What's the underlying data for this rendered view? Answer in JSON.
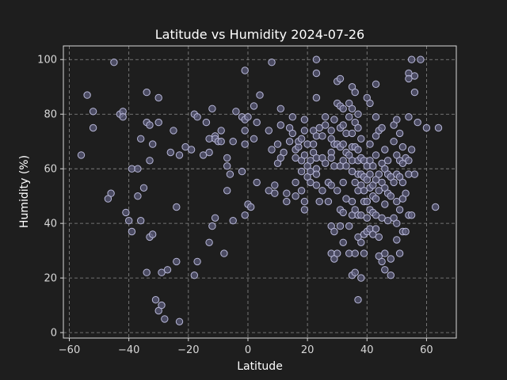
{
  "chart_data": {
    "type": "scatter",
    "title": "Latitude vs Humidity 2024-07-26",
    "xlabel": "Latitude",
    "ylabel": "Humidity (%)",
    "xlim": [
      -62,
      70
    ],
    "ylim": [
      -2,
      105
    ],
    "xticks": [
      -60,
      -40,
      -20,
      0,
      20,
      40,
      60
    ],
    "yticks": [
      0,
      20,
      40,
      60,
      80,
      100
    ],
    "grid": true,
    "colors": {
      "background": "#1e1e1e",
      "point_fill": "#5a5a78",
      "point_edge": "#b8b8d8",
      "grid": "#8a8a8a",
      "text": "#ffffff"
    },
    "points": [
      [
        -45,
        99
      ],
      [
        -54,
        87
      ],
      [
        -52,
        81
      ],
      [
        -52,
        75
      ],
      [
        -56,
        65
      ],
      [
        -43,
        80
      ],
      [
        -42,
        81
      ],
      [
        -42,
        79
      ],
      [
        -41,
        44
      ],
      [
        -40,
        41
      ],
      [
        -39,
        60
      ],
      [
        -39,
        37
      ],
      [
        -37,
        60
      ],
      [
        -46,
        51
      ],
      [
        -47,
        49
      ],
      [
        -35,
        53
      ],
      [
        -36,
        41
      ],
      [
        -37,
        50
      ],
      [
        -36,
        71
      ],
      [
        -34,
        77
      ],
      [
        -33,
        76
      ],
      [
        -33,
        63
      ],
      [
        -32,
        69
      ],
      [
        -34,
        88
      ],
      [
        -30,
        86
      ],
      [
        -34,
        22
      ],
      [
        -33,
        35
      ],
      [
        -32,
        36
      ],
      [
        -31,
        12
      ],
      [
        -30,
        8
      ],
      [
        -29,
        10
      ],
      [
        -29,
        22
      ],
      [
        -27,
        23
      ],
      [
        -28,
        5
      ],
      [
        -30,
        77
      ],
      [
        -26,
        66
      ],
      [
        -25,
        74
      ],
      [
        -24,
        46
      ],
      [
        -24,
        26
      ],
      [
        -23,
        4
      ],
      [
        -23,
        65
      ],
      [
        -21,
        68
      ],
      [
        -19,
        67
      ],
      [
        -18,
        80
      ],
      [
        -17,
        79
      ],
      [
        -17,
        26
      ],
      [
        -18,
        21
      ],
      [
        -15,
        65
      ],
      [
        -14,
        77
      ],
      [
        -13,
        71
      ],
      [
        -13,
        66
      ],
      [
        -13,
        33
      ],
      [
        -12,
        82
      ],
      [
        -12,
        39
      ],
      [
        -11,
        72
      ],
      [
        -11,
        71
      ],
      [
        -10,
        70
      ],
      [
        -11,
        42
      ],
      [
        -9,
        74
      ],
      [
        -9,
        70
      ],
      [
        -8,
        29
      ],
      [
        -7,
        52
      ],
      [
        -7,
        64
      ],
      [
        -7,
        61
      ],
      [
        -6,
        58
      ],
      [
        -5,
        41
      ],
      [
        -5,
        70
      ],
      [
        -4,
        81
      ],
      [
        -2,
        79
      ],
      [
        -2,
        59
      ],
      [
        -1,
        78
      ],
      [
        -1,
        74
      ],
      [
        -1,
        69
      ],
      [
        -1,
        96
      ],
      [
        0,
        79
      ],
      [
        0,
        47
      ],
      [
        -1,
        43
      ],
      [
        1,
        46
      ],
      [
        2,
        83
      ],
      [
        2,
        71
      ],
      [
        3,
        77
      ],
      [
        3,
        55
      ],
      [
        4,
        87
      ],
      [
        7,
        74
      ],
      [
        7,
        52
      ],
      [
        8,
        67
      ],
      [
        8,
        99
      ],
      [
        9,
        54
      ],
      [
        9,
        51
      ],
      [
        10,
        62
      ],
      [
        10,
        69
      ],
      [
        11,
        64
      ],
      [
        11,
        82
      ],
      [
        11,
        76
      ],
      [
        12,
        66
      ],
      [
        13,
        48
      ],
      [
        13,
        51
      ],
      [
        14,
        70
      ],
      [
        14,
        75
      ],
      [
        15,
        79
      ],
      [
        15,
        73
      ],
      [
        16,
        67
      ],
      [
        16,
        64
      ],
      [
        16,
        50
      ],
      [
        16,
        55
      ],
      [
        17,
        68
      ],
      [
        17,
        70
      ],
      [
        18,
        63
      ],
      [
        18,
        59
      ],
      [
        18,
        71
      ],
      [
        18,
        52
      ],
      [
        19,
        78
      ],
      [
        19,
        74
      ],
      [
        19,
        65
      ],
      [
        19,
        48
      ],
      [
        19,
        45
      ],
      [
        20,
        69
      ],
      [
        20,
        61
      ],
      [
        20,
        57
      ],
      [
        21,
        63
      ],
      [
        21,
        59
      ],
      [
        21,
        55
      ],
      [
        22,
        66
      ],
      [
        22,
        69
      ],
      [
        22,
        74
      ],
      [
        23,
        72
      ],
      [
        23,
        64
      ],
      [
        23,
        60
      ],
      [
        23,
        58
      ],
      [
        23,
        54
      ],
      [
        23,
        86
      ],
      [
        23,
        95
      ],
      [
        23,
        100
      ],
      [
        24,
        75
      ],
      [
        24,
        48
      ],
      [
        25,
        72
      ],
      [
        25,
        64
      ],
      [
        25,
        52
      ],
      [
        26,
        79
      ],
      [
        26,
        76
      ],
      [
        26,
        62
      ],
      [
        27,
        55
      ],
      [
        27,
        48
      ],
      [
        28,
        74
      ],
      [
        28,
        71
      ],
      [
        28,
        66
      ],
      [
        28,
        64
      ],
      [
        28,
        54
      ],
      [
        28,
        39
      ],
      [
        28,
        29
      ],
      [
        29,
        78
      ],
      [
        29,
        69
      ],
      [
        29,
        61
      ],
      [
        29,
        37
      ],
      [
        29,
        27
      ],
      [
        30,
        92
      ],
      [
        30,
        84
      ],
      [
        30,
        69
      ],
      [
        30,
        52
      ],
      [
        30,
        29
      ],
      [
        31,
        93
      ],
      [
        31,
        83
      ],
      [
        31,
        75
      ],
      [
        31,
        68
      ],
      [
        31,
        61
      ],
      [
        31,
        45
      ],
      [
        31,
        39
      ],
      [
        32,
        82
      ],
      [
        32,
        76
      ],
      [
        32,
        69
      ],
      [
        32,
        63
      ],
      [
        32,
        55
      ],
      [
        32,
        44
      ],
      [
        32,
        33
      ],
      [
        33,
        73
      ],
      [
        33,
        66
      ],
      [
        33,
        61
      ],
      [
        33,
        49
      ],
      [
        34,
        84
      ],
      [
        34,
        79
      ],
      [
        34,
        65
      ],
      [
        34,
        39
      ],
      [
        34,
        29
      ],
      [
        35,
        90
      ],
      [
        35,
        82
      ],
      [
        35,
        73
      ],
      [
        35,
        68
      ],
      [
        35,
        63
      ],
      [
        35,
        59
      ],
      [
        35,
        48
      ],
      [
        35,
        43
      ],
      [
        35,
        21
      ],
      [
        36,
        88
      ],
      [
        36,
        77
      ],
      [
        36,
        68
      ],
      [
        36,
        55
      ],
      [
        36,
        45
      ],
      [
        36,
        29
      ],
      [
        36,
        22
      ],
      [
        37,
        80
      ],
      [
        37,
        75
      ],
      [
        37,
        67
      ],
      [
        37,
        63
      ],
      [
        37,
        58
      ],
      [
        37,
        52
      ],
      [
        37,
        43
      ],
      [
        37,
        35
      ],
      [
        37,
        12
      ],
      [
        38,
        71
      ],
      [
        38,
        64
      ],
      [
        38,
        58
      ],
      [
        38,
        54
      ],
      [
        38,
        43
      ],
      [
        38,
        33
      ],
      [
        38,
        20
      ],
      [
        39,
        63
      ],
      [
        39,
        57
      ],
      [
        39,
        52
      ],
      [
        39,
        48
      ],
      [
        39,
        36
      ],
      [
        39,
        29
      ],
      [
        40,
        86
      ],
      [
        40,
        61
      ],
      [
        40,
        56
      ],
      [
        40,
        48
      ],
      [
        40,
        42
      ],
      [
        40,
        37
      ],
      [
        41,
        84
      ],
      [
        41,
        69
      ],
      [
        41,
        63
      ],
      [
        41,
        58
      ],
      [
        41,
        53
      ],
      [
        41,
        45
      ],
      [
        41,
        38
      ],
      [
        42,
        61
      ],
      [
        42,
        54
      ],
      [
        42,
        50
      ],
      [
        42,
        44
      ],
      [
        42,
        36
      ],
      [
        43,
        91
      ],
      [
        43,
        79
      ],
      [
        43,
        72
      ],
      [
        43,
        65
      ],
      [
        43,
        56
      ],
      [
        43,
        49
      ],
      [
        43,
        43
      ],
      [
        43,
        38
      ],
      [
        44,
        74
      ],
      [
        44,
        58
      ],
      [
        44,
        52
      ],
      [
        44,
        35
      ],
      [
        44,
        28
      ],
      [
        45,
        75
      ],
      [
        45,
        62
      ],
      [
        45,
        55
      ],
      [
        45,
        42
      ],
      [
        45,
        26
      ],
      [
        46,
        67
      ],
      [
        46,
        60
      ],
      [
        46,
        53
      ],
      [
        46,
        47
      ],
      [
        46,
        29
      ],
      [
        46,
        23
      ],
      [
        47,
        63
      ],
      [
        47,
        58
      ],
      [
        47,
        51
      ],
      [
        47,
        41
      ],
      [
        48,
        57
      ],
      [
        48,
        50
      ],
      [
        48,
        27
      ],
      [
        48,
        21
      ],
      [
        49,
        76
      ],
      [
        49,
        70
      ],
      [
        49,
        55
      ],
      [
        49,
        42
      ],
      [
        50,
        78
      ],
      [
        50,
        65
      ],
      [
        50,
        58
      ],
      [
        50,
        48
      ],
      [
        50,
        40
      ],
      [
        50,
        34
      ],
      [
        51,
        73
      ],
      [
        51,
        63
      ],
      [
        51,
        57
      ],
      [
        51,
        45
      ],
      [
        51,
        29
      ],
      [
        52,
        68
      ],
      [
        52,
        62
      ],
      [
        52,
        55
      ],
      [
        52,
        49
      ],
      [
        52,
        37
      ],
      [
        53,
        64
      ],
      [
        53,
        51
      ],
      [
        53,
        37
      ],
      [
        54,
        95
      ],
      [
        54,
        93
      ],
      [
        54,
        79
      ],
      [
        54,
        63
      ],
      [
        54,
        58
      ],
      [
        54,
        43
      ],
      [
        55,
        100
      ],
      [
        55,
        67
      ],
      [
        55,
        43
      ],
      [
        56,
        88
      ],
      [
        56,
        94
      ],
      [
        56,
        58
      ],
      [
        57,
        77
      ],
      [
        58,
        100
      ],
      [
        60,
        75
      ],
      [
        63,
        46
      ],
      [
        64,
        75
      ]
    ]
  }
}
